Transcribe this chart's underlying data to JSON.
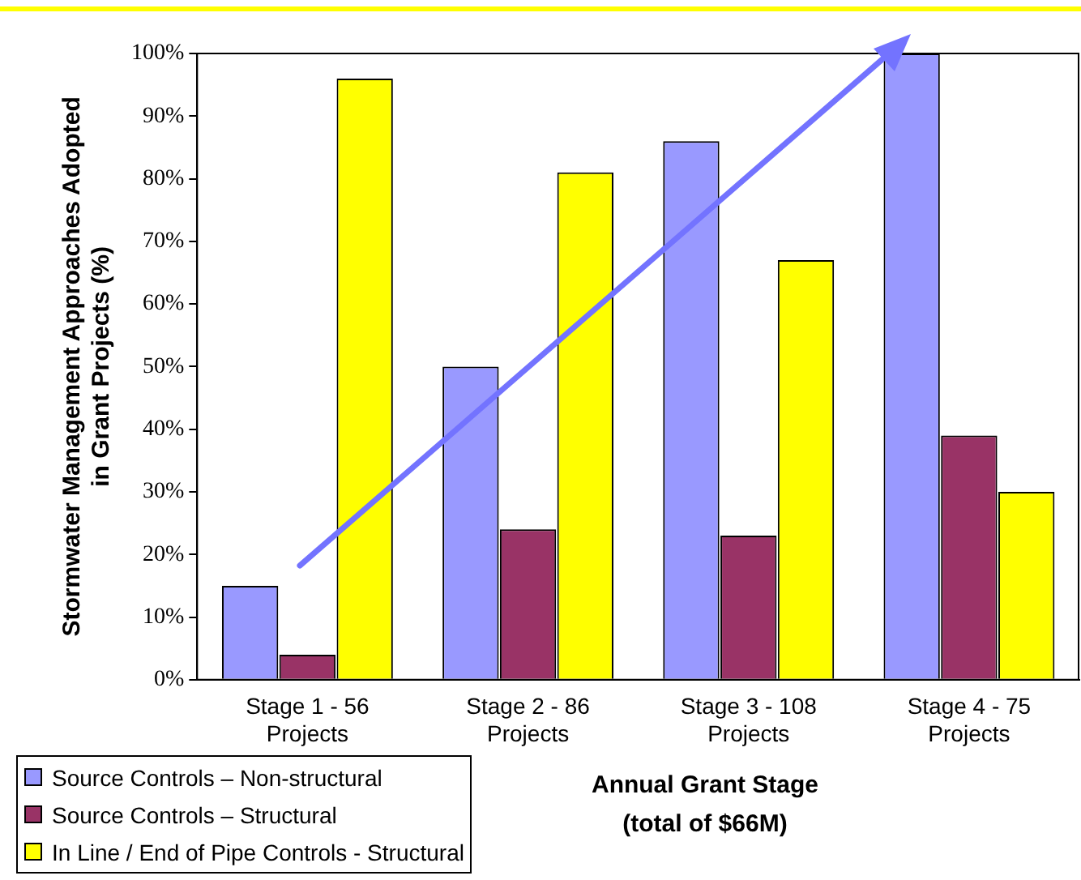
{
  "chart_data": {
    "type": "bar",
    "xlabel": "Annual Grant Stage (total of $66M)",
    "ylabel": "Stormwater Management Approaches Adopted in Grant Projects (%)",
    "categories": [
      "Stage 1 - 56 Projects",
      "Stage 2 - 86 Projects",
      "Stage 3 - 108 Projects",
      "Stage 4 - 75 Projects"
    ],
    "series": [
      {
        "name": "Source Controls – Non-structural",
        "color": "#9999ff",
        "values": [
          15,
          50,
          86,
          100
        ]
      },
      {
        "name": "Source Controls – Structural",
        "color": "#993366",
        "values": [
          4,
          24,
          23,
          39
        ]
      },
      {
        "name": "In Line / End of Pipe Controls - Structural",
        "color": "#ffff00",
        "values": [
          96,
          81,
          67,
          30
        ]
      }
    ],
    "ylim": [
      0,
      100
    ],
    "yticks": [
      {
        "value": 0,
        "label": "0%"
      },
      {
        "value": 10,
        "label": "10%"
      },
      {
        "value": 20,
        "label": "20%"
      },
      {
        "value": 30,
        "label": "30%"
      },
      {
        "value": 40,
        "label": "40%"
      },
      {
        "value": 50,
        "label": "50%"
      },
      {
        "value": 60,
        "label": "60%"
      },
      {
        "value": 70,
        "label": "70%"
      },
      {
        "value": 80,
        "label": "80%"
      },
      {
        "value": 90,
        "label": "90%"
      },
      {
        "value": 100,
        "label": "100%"
      }
    ],
    "grid": false,
    "legend": "bottom left"
  }
}
